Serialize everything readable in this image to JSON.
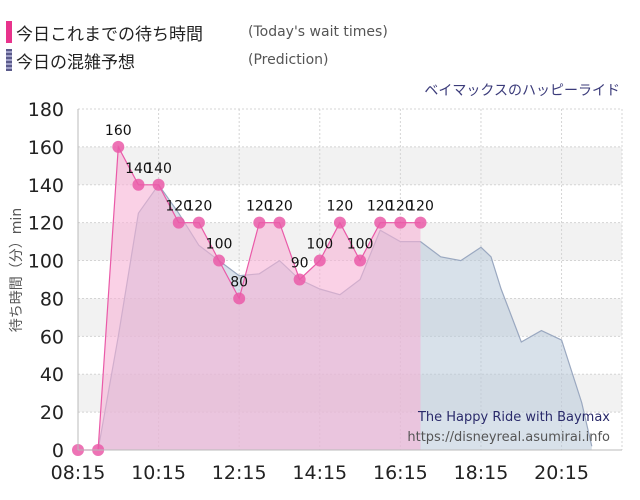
{
  "legend": {
    "today": {
      "title": "今日これまでの待ち時間",
      "subtitle": "(Today's wait times)",
      "color": "#e8338c"
    },
    "prediction": {
      "title": "今日の混雑予想",
      "subtitle": "(Prediction)",
      "color": "#6a6a9a"
    }
  },
  "ride_name": "ベイマックスのハッピーライド",
  "watermark": {
    "title": "The Happy Ride with Baymax",
    "url": "https://disneyreal.asumirai.info"
  },
  "chart_data": {
    "type": "area",
    "ylabel": "待ち時間（分）min",
    "ylim": [
      0,
      180
    ],
    "y_ticks": [
      "0",
      "20",
      "40",
      "60",
      "80",
      "100",
      "120",
      "140",
      "160",
      "180"
    ],
    "x_range": [
      "08:15",
      "21:45"
    ],
    "x_ticks": [
      "08:15",
      "10:15",
      "12:15",
      "14:15",
      "16:15",
      "18:15",
      "20:15"
    ],
    "grid": true,
    "series": [
      {
        "name": "今日これまでの待ち時間",
        "color": "#e8338c",
        "points": [
          {
            "x": "08:15",
            "y": 0
          },
          {
            "x": "08:45",
            "y": 0
          },
          {
            "x": "09:15",
            "y": 160
          },
          {
            "x": "09:45",
            "y": 140
          },
          {
            "x": "10:15",
            "y": 140
          },
          {
            "x": "10:45",
            "y": 120
          },
          {
            "x": "11:15",
            "y": 120
          },
          {
            "x": "11:45",
            "y": 100
          },
          {
            "x": "12:15",
            "y": 80
          },
          {
            "x": "12:45",
            "y": 120
          },
          {
            "x": "13:15",
            "y": 120
          },
          {
            "x": "13:45",
            "y": 90
          },
          {
            "x": "14:15",
            "y": 100
          },
          {
            "x": "14:45",
            "y": 120
          },
          {
            "x": "15:15",
            "y": 100
          },
          {
            "x": "15:45",
            "y": 120
          },
          {
            "x": "16:15",
            "y": 120
          },
          {
            "x": "16:45",
            "y": 120
          }
        ]
      },
      {
        "name": "今日の混雑予想",
        "color": "#8a9bb8",
        "points": [
          {
            "x": "08:45",
            "y": 0
          },
          {
            "x": "09:15",
            "y": 60
          },
          {
            "x": "09:45",
            "y": 125
          },
          {
            "x": "10:15",
            "y": 140
          },
          {
            "x": "10:45",
            "y": 125
          },
          {
            "x": "11:15",
            "y": 108
          },
          {
            "x": "11:45",
            "y": 100
          },
          {
            "x": "12:15",
            "y": 92
          },
          {
            "x": "12:45",
            "y": 93
          },
          {
            "x": "13:15",
            "y": 100
          },
          {
            "x": "13:45",
            "y": 90
          },
          {
            "x": "14:15",
            "y": 85
          },
          {
            "x": "14:45",
            "y": 82
          },
          {
            "x": "15:15",
            "y": 90
          },
          {
            "x": "15:45",
            "y": 116
          },
          {
            "x": "16:15",
            "y": 110
          },
          {
            "x": "16:45",
            "y": 110
          },
          {
            "x": "17:15",
            "y": 102
          },
          {
            "x": "17:45",
            "y": 100
          },
          {
            "x": "18:15",
            "y": 107
          },
          {
            "x": "18:30",
            "y": 102
          },
          {
            "x": "18:45",
            "y": 85
          },
          {
            "x": "19:15",
            "y": 57
          },
          {
            "x": "19:45",
            "y": 63
          },
          {
            "x": "20:15",
            "y": 58
          },
          {
            "x": "20:45",
            "y": 25
          },
          {
            "x": "21:00",
            "y": 2
          }
        ]
      }
    ],
    "data_labels": [
      "160",
      "140",
      "140",
      "120",
      "120",
      "100",
      "80",
      "120",
      "120",
      "90",
      "100",
      "120",
      "100",
      "120",
      "120",
      "120"
    ]
  }
}
